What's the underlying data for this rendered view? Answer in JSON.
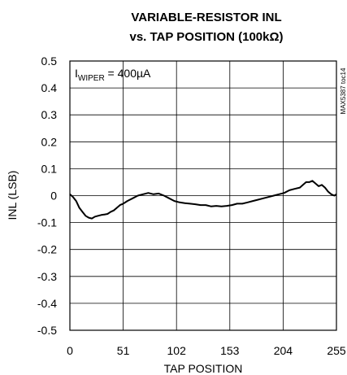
{
  "chart_data": {
    "type": "line",
    "title_line1": "VARIABLE-RESISTOR INL",
    "title_line2": "vs. TAP POSITION (100kΩ)",
    "xlabel": "TAP POSITION",
    "ylabel": "INL (LSB)",
    "xlim": [
      0,
      255
    ],
    "ylim": [
      -0.5,
      0.5
    ],
    "x_ticks": [
      "0",
      "51",
      "102",
      "153",
      "204",
      "255"
    ],
    "y_ticks": [
      "0.5",
      "0.4",
      "0.3",
      "0.2",
      "0.1",
      "0",
      "-0.1",
      "-0.2",
      "-0.3",
      "-0.4",
      "-0.5"
    ],
    "grid": true,
    "annotation_main": "I",
    "annotation_sub": "WIPER",
    "annotation_rest": " = 400µA",
    "side_note": "MAX5387 toc14",
    "series": [
      {
        "x": [
          0,
          3,
          6,
          9,
          12,
          15,
          18,
          21,
          24,
          27,
          30,
          33,
          36,
          39,
          42,
          45,
          48,
          51,
          55,
          60,
          65,
          70,
          75,
          80,
          85,
          90,
          95,
          100,
          105,
          110,
          115,
          120,
          125,
          130,
          135,
          140,
          145,
          150,
          155,
          160,
          165,
          170,
          175,
          180,
          185,
          190,
          195,
          200,
          205,
          210,
          215,
          220,
          223,
          226,
          229,
          232,
          235,
          238,
          241,
          244,
          247,
          250,
          253,
          255
        ],
        "y": [
          0.005,
          -0.005,
          -0.02,
          -0.045,
          -0.06,
          -0.075,
          -0.082,
          -0.085,
          -0.078,
          -0.075,
          -0.072,
          -0.07,
          -0.068,
          -0.06,
          -0.055,
          -0.045,
          -0.035,
          -0.03,
          -0.02,
          -0.01,
          0.0,
          0.005,
          0.01,
          0.005,
          0.008,
          0.0,
          -0.01,
          -0.02,
          -0.025,
          -0.028,
          -0.03,
          -0.032,
          -0.035,
          -0.035,
          -0.04,
          -0.038,
          -0.04,
          -0.038,
          -0.035,
          -0.03,
          -0.03,
          -0.025,
          -0.02,
          -0.015,
          -0.01,
          -0.005,
          0.0,
          0.005,
          0.01,
          0.02,
          0.025,
          0.03,
          0.04,
          0.05,
          0.05,
          0.055,
          0.045,
          0.035,
          0.04,
          0.03,
          0.015,
          0.005,
          0.0,
          0.005
        ]
      }
    ]
  }
}
